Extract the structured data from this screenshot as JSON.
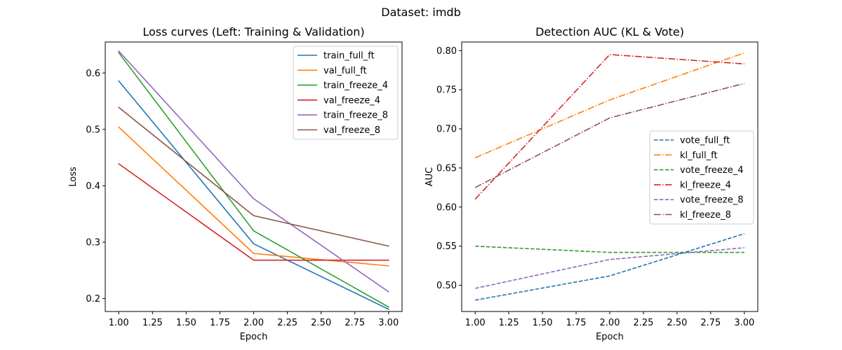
{
  "figure_title": "Dataset: imdb",
  "chart_data": [
    {
      "type": "line",
      "title": "Loss curves (Left: Training & Validation)",
      "xlabel": "Epoch",
      "ylabel": "Loss",
      "x": [
        1.0,
        2.0,
        3.0
      ],
      "xlim": [
        0.9,
        3.1
      ],
      "ylim": [
        0.177,
        0.655
      ],
      "xticks": [
        1.0,
        1.25,
        1.5,
        1.75,
        2.0,
        2.25,
        2.5,
        2.75,
        3.0
      ],
      "xtick_labels": [
        "1.00",
        "1.25",
        "1.50",
        "1.75",
        "2.00",
        "2.25",
        "2.50",
        "2.75",
        "3.00"
      ],
      "yticks": [
        0.2,
        0.3,
        0.4,
        0.5,
        0.6
      ],
      "ytick_labels": [
        "0.2",
        "0.3",
        "0.4",
        "0.5",
        "0.6"
      ],
      "grid": false,
      "legend_position": "top-right",
      "series": [
        {
          "name": "train_full_ft",
          "values": [
            0.586,
            0.297,
            0.181
          ],
          "color": "#1f77b4",
          "style": "solid"
        },
        {
          "name": "val_full_ft",
          "values": [
            0.504,
            0.28,
            0.258
          ],
          "color": "#ff7f0e",
          "style": "solid"
        },
        {
          "name": "train_freeze_4",
          "values": [
            0.636,
            0.32,
            0.185
          ],
          "color": "#2ca02c",
          "style": "solid"
        },
        {
          "name": "val_freeze_4",
          "values": [
            0.439,
            0.268,
            0.268
          ],
          "color": "#d62728",
          "style": "solid"
        },
        {
          "name": "train_freeze_8",
          "values": [
            0.639,
            0.377,
            0.212
          ],
          "color": "#9467bd",
          "style": "solid"
        },
        {
          "name": "val_freeze_8",
          "values": [
            0.539,
            0.347,
            0.293
          ],
          "color": "#8c564b",
          "style": "solid"
        }
      ]
    },
    {
      "type": "line",
      "title": "Detection AUC (KL & Vote)",
      "xlabel": "Epoch",
      "ylabel": "AUC",
      "x": [
        1.0,
        2.0,
        3.0
      ],
      "xlim": [
        0.9,
        3.1
      ],
      "ylim": [
        0.4665,
        0.811
      ],
      "xticks": [
        1.0,
        1.25,
        1.5,
        1.75,
        2.0,
        2.25,
        2.5,
        2.75,
        3.0
      ],
      "xtick_labels": [
        "1.00",
        "1.25",
        "1.50",
        "1.75",
        "2.00",
        "2.25",
        "2.50",
        "2.75",
        "3.00"
      ],
      "yticks": [
        0.5,
        0.55,
        0.6,
        0.65,
        0.7,
        0.75,
        0.8
      ],
      "ytick_labels": [
        "0.50",
        "0.55",
        "0.60",
        "0.65",
        "0.70",
        "0.75",
        "0.80"
      ],
      "grid": false,
      "legend_position": "center-right",
      "series": [
        {
          "name": "vote_full_ft",
          "values": [
            0.481,
            0.512,
            0.566
          ],
          "color": "#1f77b4",
          "style": "dashed"
        },
        {
          "name": "kl_full_ft",
          "values": [
            0.663,
            0.737,
            0.797
          ],
          "color": "#ff7f0e",
          "style": "dashdot"
        },
        {
          "name": "vote_freeze_4",
          "values": [
            0.55,
            0.542,
            0.542
          ],
          "color": "#2ca02c",
          "style": "dashed"
        },
        {
          "name": "kl_freeze_4",
          "values": [
            0.61,
            0.795,
            0.783
          ],
          "color": "#d62728",
          "style": "dashdot"
        },
        {
          "name": "vote_freeze_8",
          "values": [
            0.496,
            0.533,
            0.548
          ],
          "color": "#9467bd",
          "style": "dashed"
        },
        {
          "name": "kl_freeze_8",
          "values": [
            0.625,
            0.714,
            0.758
          ],
          "color": "#8c564b",
          "style": "dashdot"
        }
      ]
    }
  ]
}
